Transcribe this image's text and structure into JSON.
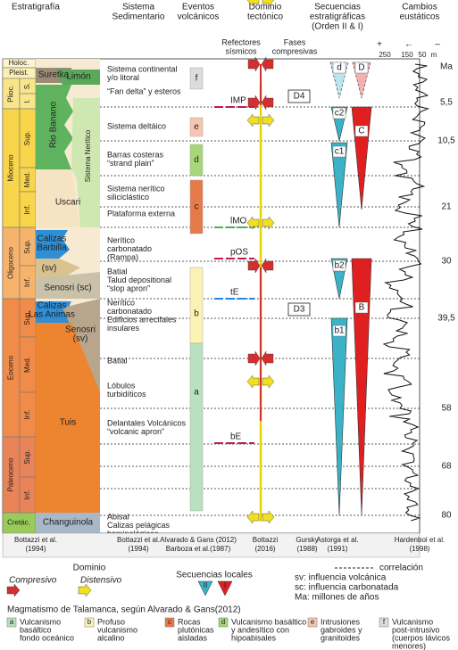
{
  "headers": [
    [
      "Estratigrafía"
    ],
    [
      "Sistema",
      "Sedimentario"
    ],
    [
      "Eventos",
      "volcánicos"
    ],
    [
      "Dominio",
      "tectónico"
    ],
    [
      "Secuencias",
      "estratigráficas",
      "(Orden II & I)"
    ],
    [
      "Cambios",
      "eustáticos"
    ]
  ],
  "subheaders": {
    "reflectores": [
      "Refectores",
      "sísmicos"
    ],
    "fases": [
      "Fases",
      "compresivas"
    ]
  },
  "periods": [
    "Holoc.",
    "Pleist.",
    "Plioc.",
    "Mioceno",
    "Oligoceno",
    "Eoceno",
    "Paleoceno",
    "Cretác."
  ],
  "epochs": [
    "S.",
    "I.",
    "Sup.",
    "Med.",
    "Inf.",
    "Sup.",
    "Inf.",
    "Sup.",
    "Med.",
    "Inf.",
    "Sup.",
    "Inf."
  ],
  "formations": [
    [
      "Suretka"
    ],
    [
      "Limón"
    ],
    [
      "Rio Banano"
    ],
    [
      "Sistema Nerítico"
    ],
    [
      "Uscari"
    ],
    [
      "Calizas",
      "Barbilla"
    ],
    [
      "(sv)"
    ],
    [
      "Senosri (sc)"
    ],
    [
      "Calizas",
      "Las Animas"
    ],
    [
      "Senosri",
      "(sv)"
    ],
    [
      "Tuis"
    ],
    [
      "Changuinola"
    ]
  ],
  "sedimentary": [
    [
      "Sistema continental",
      "y/o litoral"
    ],
    [
      "“Fan delta” y esteros"
    ],
    [
      "Sistema deltáico"
    ],
    [
      "Barras costeras",
      "“strand plain”"
    ],
    [
      "Sistema nerítico",
      "siliciclástico"
    ],
    [
      "Plataforma externa"
    ],
    [
      "Nerítico",
      "carbonatado",
      "(Rampa)"
    ],
    [
      "Batial",
      "Talud depositional",
      "“slop apron”"
    ],
    [
      "Nerítico",
      "carbonatado",
      "Edificios arrecifales",
      "insulares"
    ],
    [
      "Batial"
    ],
    [
      "Lóbulos",
      "turbidíticos"
    ],
    [
      "Delantales Volcánicos",
      "“volcanic apron”"
    ],
    [
      "Abisal",
      "Calizas pelágicas",
      "hemipelágicas"
    ]
  ],
  "volcanic_events": [
    "f",
    "e",
    "d",
    "c",
    "b",
    "a"
  ],
  "reflectors": [
    "IMP",
    "lMO",
    "pOS",
    "tE",
    "bE"
  ],
  "phases": [
    "D4",
    "D3"
  ],
  "sequences": [
    "d",
    "D",
    "c2",
    "C",
    "c1",
    "b2",
    "B",
    "b1"
  ],
  "eustatic_scale": [
    "+",
    "←",
    "–",
    "250",
    "150",
    "50",
    "m"
  ],
  "ma": [
    "Ma",
    "5,5",
    "10,5",
    "21",
    "30",
    "39,5",
    "58",
    "68",
    "80"
  ],
  "sources": [
    [
      "Bottazzi et al.",
      "(1994)"
    ],
    [
      "Bottazzi et al.",
      "(1994)"
    ],
    [
      "Alvarado & Gans (2012)",
      "Barboza et al.(1987)"
    ],
    [
      "Bottazzi",
      "(2016)"
    ],
    [
      "Gursky",
      "(1988)"
    ],
    [
      "Astorga et al.",
      "(1991)"
    ],
    [
      "Hardenbol et al.",
      "(1998)"
    ]
  ],
  "legend": {
    "dominio": "Dominio",
    "compresivo": "Compresivo",
    "distensivo": "Distensivo",
    "secuencias": "Secuencias locales",
    "ii": "II",
    "i": "I",
    "sv": "sv: influencia volcánica",
    "sc": "sc: influencia carbonatada",
    "ma": "Ma: millones de años",
    "correlacion": "correlación",
    "magmatismo": "Magmatismo de Talamanca, según Alvarado & Gans(2012)",
    "items": [
      {
        "key": "a",
        "text": [
          "Vulcanismo",
          "basáltico",
          "fondo oceánico"
        ]
      },
      {
        "key": "b",
        "text": [
          "Profuso",
          "vulcanismo",
          "alcalino"
        ]
      },
      {
        "key": "c",
        "text": [
          "Rocas",
          "plutónicas",
          "aisladas"
        ]
      },
      {
        "key": "d",
        "text": [
          "Vulcanismo basáltico",
          "y andesítico con",
          "hipoabisales"
        ]
      },
      {
        "key": "e",
        "text": [
          "Intrusiones",
          "gabroides y",
          "granitoides"
        ]
      },
      {
        "key": "f",
        "text": [
          "Vulcanismo",
          "post-intrusivo",
          "(cuerpos lávicos",
          "menores)"
        ]
      }
    ]
  }
}
